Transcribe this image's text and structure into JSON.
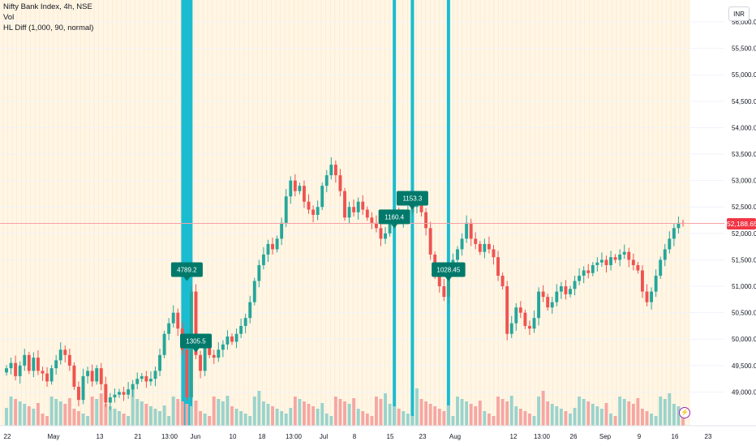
{
  "legend": {
    "symbol": "Nifty Bank Index, 4h, NSE",
    "vol": "Vol",
    "indicator": "HL Diff (1,000, 90, normal)"
  },
  "currency": "INR",
  "last_price_label": "52,188.65",
  "colors": {
    "up": "#26a69a",
    "down": "#ef5350",
    "vol_up": "#9ad3cc",
    "vol_down": "#f5a7a3",
    "highlight": "#1bbccf",
    "label_bg": "#00796b",
    "shade": "#fff6e5",
    "price_line": "#f23645"
  },
  "chart_data": {
    "type": "candlestick",
    "y_ticks": [
      "56,000.00",
      "55,500.00",
      "55,000.00",
      "54,500.00",
      "54,000.00",
      "53,500.00",
      "53,000.00",
      "52,500.00",
      "52,000.00",
      "51,500.00",
      "51,000.00",
      "50,500.00",
      "50,000.00",
      "49,500.00",
      "49,000.00"
    ],
    "ylim": [
      48700,
      56200
    ],
    "x_ticks": [
      "22",
      "May",
      "13",
      "21",
      "13:00",
      "Jun",
      "10",
      "18",
      "13:00",
      "Jul",
      "8",
      "15",
      "23",
      "Aug",
      "12",
      "13:00",
      "26",
      "Sep",
      "9",
      "16",
      "23"
    ],
    "last_price": 52188.65,
    "annotations": [
      {
        "label": "4789.2",
        "date": "Jun 4",
        "price": 51100
      },
      {
        "label": "1305.5",
        "date": "Jun 5",
        "price": 49750
      },
      {
        "label": "1160.4",
        "date": "Jul 24",
        "price": 52100
      },
      {
        "label": "1153.3",
        "date": "Jul 26",
        "price": 52450
      },
      {
        "label": "1028.45",
        "date": "Aug 2",
        "price": 51100
      }
    ],
    "closes": [
      49450,
      49550,
      49300,
      49500,
      49700,
      49400,
      49650,
      49400,
      49350,
      49200,
      49450,
      49600,
      49800,
      49700,
      49500,
      49100,
      48850,
      49300,
      49400,
      49200,
      49450,
      49150,
      48800,
      48900,
      48950,
      49000,
      48950,
      49050,
      49150,
      49250,
      49300,
      49200,
      49250,
      49400,
      49700,
      50100,
      50300,
      50500,
      50200,
      49800,
      48900,
      50900,
      49700,
      49400,
      49850,
      49700,
      49650,
      49800,
      49900,
      50050,
      49950,
      50100,
      50250,
      50400,
      50700,
      51100,
      51400,
      51600,
      51800,
      51700,
      51900,
      52200,
      52700,
      53000,
      52800,
      52900,
      52600,
      52450,
      52350,
      52500,
      52900,
      53100,
      53300,
      53100,
      52800,
      52300,
      52500,
      52400,
      52600,
      52450,
      52300,
      52200,
      52100,
      51900,
      52000,
      52200,
      52350,
      52250,
      52300,
      52400,
      52500,
      52600,
      52400,
      52100,
      51600,
      51200,
      51000,
      50800,
      51300,
      51500,
      51700,
      51900,
      52200,
      51900,
      51800,
      51650,
      51800,
      51700,
      51550,
      51200,
      51000,
      50100,
      50300,
      50600,
      50500,
      50250,
      50200,
      50400,
      50900,
      50800,
      50600,
      50700,
      50900,
      51000,
      50850,
      50950,
      51100,
      51200,
      51300,
      51250,
      51400,
      51450,
      51500,
      51400,
      51550,
      51500,
      51600,
      51650,
      51500,
      51400,
      51300,
      50900,
      50700,
      50900,
      51200,
      51500,
      51700,
      51900,
      52100,
      52200,
      52188
    ]
  }
}
